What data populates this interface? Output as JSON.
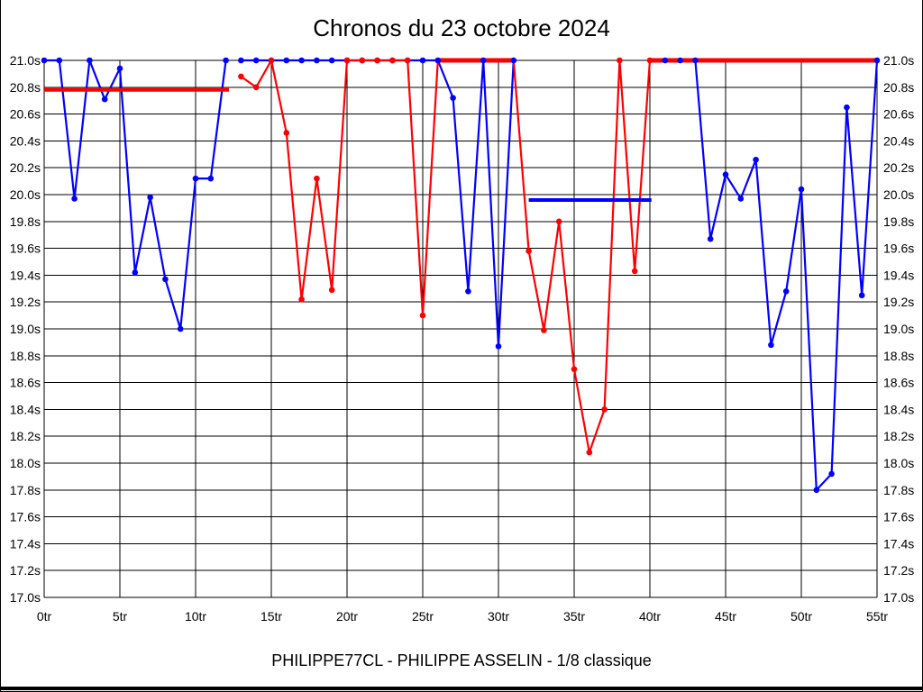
{
  "footer": "PHILIPPE77CL - PHILIPPE ASSELIN - 1/8 classique",
  "chart_data": {
    "type": "line",
    "title": "Chronos du 23 octobre 2024",
    "xlabel": "",
    "ylabel": "",
    "xlim": [
      0,
      55
    ],
    "ylim": [
      17.0,
      21.0
    ],
    "grid": true,
    "legend": "none",
    "y_tick_unit": "s",
    "x_tick_unit": "tr",
    "y_ticks": [
      "21.0s",
      "20.8s",
      "20.6s",
      "20.4s",
      "20.2s",
      "20.0s",
      "19.8s",
      "19.6s",
      "19.4s",
      "19.2s",
      "19.0s",
      "18.8s",
      "18.6s",
      "18.4s",
      "18.2s",
      "18.0s",
      "17.8s",
      "17.6s",
      "17.4s",
      "17.2s",
      "17.0s"
    ],
    "x_ticks": [
      "0tr",
      "5tr",
      "10tr",
      "15tr",
      "20tr",
      "25tr",
      "30tr",
      "35tr",
      "40tr",
      "45tr",
      "50tr",
      "55tr"
    ],
    "colors": {
      "blue_series": "#0000ff",
      "red_series": "#ff0000"
    },
    "series": [
      {
        "id": "blue",
        "color": "#0000ff",
        "segments": [
          {
            "width": 2.2,
            "markers": true,
            "points": [
              [
                0,
                21.0
              ],
              [
                1,
                21.0
              ],
              [
                2,
                19.97
              ],
              [
                3,
                21.0
              ],
              [
                4,
                20.71
              ],
              [
                5,
                20.94
              ],
              [
                6,
                19.42
              ],
              [
                7,
                19.98
              ],
              [
                8,
                19.37
              ],
              [
                9,
                19.0
              ],
              [
                10,
                20.12
              ],
              [
                11,
                20.12
              ],
              [
                12,
                21.0
              ]
            ]
          },
          {
            "width": 2.2,
            "markers": true,
            "points": [
              [
                13,
                21.0
              ],
              [
                14,
                21.0
              ],
              [
                15,
                21.0
              ],
              [
                16,
                21.0
              ],
              [
                17,
                21.0
              ],
              [
                18,
                21.0
              ],
              [
                19,
                21.0
              ],
              [
                20,
                21.0
              ],
              [
                21,
                21.0
              ],
              [
                22,
                21.0
              ],
              [
                23,
                21.0
              ],
              [
                24,
                21.0
              ],
              [
                25,
                21.0
              ],
              [
                26,
                21.0
              ],
              [
                27,
                20.72
              ],
              [
                28,
                19.28
              ],
              [
                29,
                21.0
              ],
              [
                30,
                18.87
              ],
              [
                31,
                21.0
              ]
            ]
          },
          {
            "width": 2.2,
            "markers": true,
            "points": [
              [
                41,
                21.0
              ],
              [
                42,
                21.0
              ],
              [
                43,
                21.0
              ],
              [
                44,
                19.67
              ],
              [
                45,
                20.15
              ],
              [
                46,
                19.97
              ],
              [
                47,
                20.26
              ],
              [
                48,
                18.88
              ],
              [
                49,
                19.28
              ],
              [
                50,
                20.04
              ],
              [
                51,
                17.8
              ],
              [
                52,
                17.92
              ],
              [
                53,
                20.65
              ],
              [
                54,
                19.25
              ],
              [
                55,
                21.0
              ]
            ]
          }
        ]
      },
      {
        "id": "red",
        "color": "#ff0000",
        "segments": [
          {
            "width": 2.2,
            "markers": true,
            "points": [
              [
                13,
                20.88
              ],
              [
                14,
                20.8
              ],
              [
                15,
                21.0
              ],
              [
                16,
                20.46
              ],
              [
                17,
                19.22
              ],
              [
                18,
                20.12
              ],
              [
                19,
                19.29
              ],
              [
                20,
                21.0
              ],
              [
                21,
                21.0
              ],
              [
                22,
                21.0
              ],
              [
                23,
                21.0
              ],
              [
                24,
                21.0
              ],
              [
                25,
                19.1
              ]
            ]
          },
          {
            "width": 2.2,
            "markers": false,
            "points": [
              [
                25,
                19.1
              ],
              [
                26,
                21.0
              ]
            ]
          },
          {
            "width": 5,
            "markers": false,
            "points": [
              [
                26,
                21.0
              ],
              [
                31,
                21.0
              ]
            ]
          },
          {
            "width": 2.2,
            "markers": false,
            "points": [
              [
                31,
                21.0
              ],
              [
                32,
                19.58
              ]
            ]
          },
          {
            "width": 2.2,
            "markers": true,
            "points": [
              [
                32,
                19.58
              ],
              [
                33,
                18.99
              ],
              [
                34,
                19.8
              ],
              [
                35,
                18.7
              ],
              [
                36,
                18.08
              ],
              [
                37,
                18.4
              ],
              [
                38,
                21.0
              ],
              [
                39,
                19.43
              ],
              [
                40,
                21.0
              ]
            ]
          },
          {
            "width": 5,
            "markers": false,
            "points": [
              [
                40,
                21.0
              ],
              [
                55,
                21.0
              ]
            ]
          }
        ]
      }
    ],
    "average_lines": [
      {
        "id": "red",
        "color": "#ff0000",
        "value": 20.78,
        "from_lap": 0,
        "to_lap": 12.2
      },
      {
        "id": "blue",
        "color": "#0000ff",
        "value": 19.96,
        "from_lap": 32,
        "to_lap": 40.1
      }
    ]
  }
}
